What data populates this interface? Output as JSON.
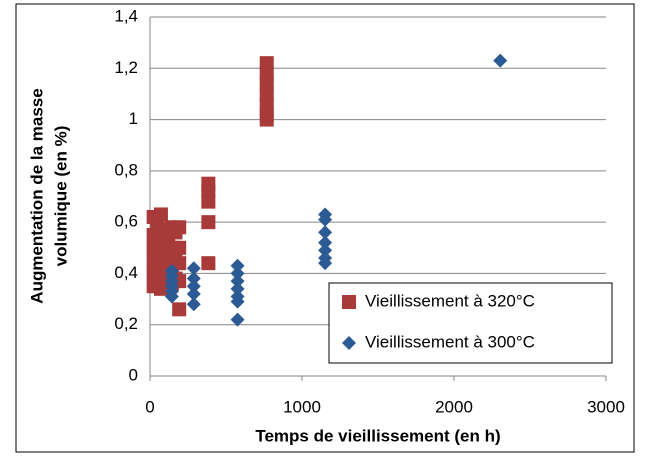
{
  "chart_data": {
    "type": "scatter",
    "xlabel": "Temps de vieillissement (en h)",
    "ylabel": [
      "Augmentation de la masse",
      "volumique (en %)"
    ],
    "xlim": [
      0,
      3000
    ],
    "xticks": [
      0,
      1000,
      2000,
      3000
    ],
    "ylim": [
      0,
      1.4
    ],
    "yticks": [
      0,
      {
        "value": 0.2,
        "label": "0,2"
      },
      {
        "value": 0.4,
        "label": "0,4"
      },
      {
        "value": 0.6,
        "label": "0,6"
      },
      {
        "value": 0.8,
        "label": "0,8"
      },
      1,
      {
        "value": 1.2,
        "label": "1,2"
      },
      {
        "value": 1.4,
        "label": "1,4"
      }
    ],
    "grid": true,
    "legend": "lower right",
    "series": [
      {
        "name": "Vieillissement à 320°C",
        "color": "#a93a3a",
        "marker": "square",
        "x": [
          24,
          24,
          24,
          24,
          24,
          24,
          48,
          48,
          48,
          48,
          72,
          72,
          72,
          72,
          96,
          96,
          96,
          96,
          120,
          120,
          120,
          144,
          144,
          144,
          144,
          168,
          168,
          168,
          192,
          192,
          192,
          192,
          192,
          384,
          384,
          384,
          384,
          384,
          768,
          768,
          768,
          768,
          768,
          768,
          768
        ],
        "values": [
          0.62,
          0.55,
          0.5,
          0.45,
          0.4,
          0.35,
          0.6,
          0.52,
          0.45,
          0.38,
          0.63,
          0.5,
          0.42,
          0.34,
          0.57,
          0.48,
          0.4,
          0.36,
          0.55,
          0.47,
          0.4,
          0.58,
          0.5,
          0.42,
          0.36,
          0.56,
          0.46,
          0.38,
          0.58,
          0.5,
          0.44,
          0.37,
          0.26,
          0.75,
          0.72,
          0.68,
          0.6,
          0.44,
          1.22,
          1.18,
          1.14,
          1.1,
          1.06,
          1.02,
          1.0
        ]
      },
      {
        "name": "Vieillissement à 300°C",
        "color": "#2b5a94",
        "marker": "diamond",
        "x": [
          144,
          144,
          144,
          144,
          144,
          144,
          288,
          288,
          288,
          288,
          288,
          576,
          576,
          576,
          576,
          576,
          576,
          576,
          1152,
          1152,
          1152,
          1152,
          1152,
          1152,
          1152,
          2304
        ],
        "values": [
          0.41,
          0.39,
          0.37,
          0.35,
          0.33,
          0.31,
          0.42,
          0.38,
          0.35,
          0.32,
          0.28,
          0.43,
          0.4,
          0.37,
          0.34,
          0.31,
          0.29,
          0.22,
          0.63,
          0.61,
          0.56,
          0.52,
          0.49,
          0.46,
          0.44,
          1.23
        ]
      }
    ]
  }
}
